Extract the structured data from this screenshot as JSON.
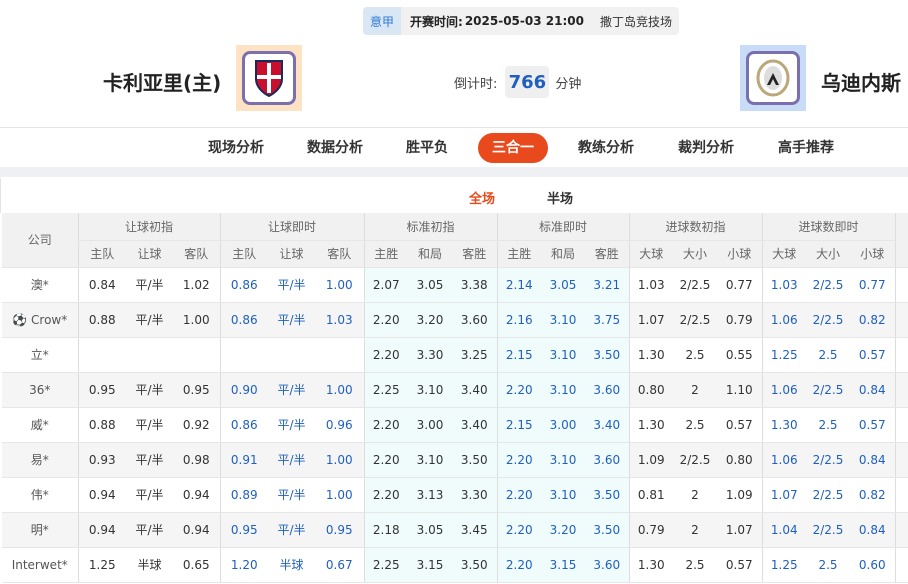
{
  "match": {
    "league": "意甲",
    "time_label": "开赛时间:",
    "time": "2025-05-03 21:00",
    "venue": "撒丁岛竞技场",
    "home": "卡利亚里(主)",
    "away": "乌迪内斯",
    "countdown_label": "倒计时:",
    "countdown": "766",
    "countdown_unit": "分钟"
  },
  "nav": [
    "现场分析",
    "数据分析",
    "胜平负",
    "三合一",
    "教练分析",
    "裁判分析",
    "高手推荐"
  ],
  "nav_active": "三合一",
  "subtabs": [
    "全场",
    "半场"
  ],
  "accent": "#e8491d",
  "table": {
    "company_header": "公司",
    "groups": [
      "让球初指",
      "让球即时",
      "标准初指",
      "标准即时",
      "进球数初指",
      "进球数即时"
    ],
    "subheaders": [
      "主队",
      "让球",
      "客队",
      "主队",
      "让球",
      "客队",
      "主胜",
      "和局",
      "客胜",
      "主胜",
      "和局",
      "客胜",
      "大球",
      "大小",
      "小球",
      "大球",
      "大小",
      "小球"
    ],
    "rows": [
      {
        "company": "澳*",
        "v": [
          "0.84",
          "平/半",
          "1.02",
          "0.86",
          "平/半",
          "1.00",
          "2.07",
          "3.05",
          "3.38",
          "2.14",
          "3.05",
          "3.21",
          "1.03",
          "2/2.5",
          "0.77",
          "1.03",
          "2/2.5",
          "0.77"
        ]
      },
      {
        "company": "Crow*",
        "icon": "soccer-ball",
        "v": [
          "0.88",
          "平/半",
          "1.00",
          "0.86",
          "平/半",
          "1.03",
          "2.20",
          "3.20",
          "3.60",
          "2.16",
          "3.10",
          "3.75",
          "1.07",
          "2/2.5",
          "0.79",
          "1.06",
          "2/2.5",
          "0.82"
        ]
      },
      {
        "company": "立*",
        "v": [
          "",
          "",
          "",
          "",
          "",
          "",
          "2.20",
          "3.30",
          "3.25",
          "2.15",
          "3.10",
          "3.50",
          "1.30",
          "2.5",
          "0.55",
          "1.25",
          "2.5",
          "0.57"
        ]
      },
      {
        "company": "36*",
        "v": [
          "0.95",
          "平/半",
          "0.95",
          "0.90",
          "平/半",
          "1.00",
          "2.25",
          "3.10",
          "3.40",
          "2.20",
          "3.10",
          "3.60",
          "0.80",
          "2",
          "1.10",
          "1.06",
          "2/2.5",
          "0.84"
        ]
      },
      {
        "company": "威*",
        "v": [
          "0.88",
          "平/半",
          "0.92",
          "0.86",
          "平/半",
          "0.96",
          "2.20",
          "3.00",
          "3.40",
          "2.15",
          "3.00",
          "3.40",
          "1.30",
          "2.5",
          "0.57",
          "1.30",
          "2.5",
          "0.57"
        ]
      },
      {
        "company": "易*",
        "v": [
          "0.93",
          "平/半",
          "0.98",
          "0.91",
          "平/半",
          "1.00",
          "2.20",
          "3.10",
          "3.50",
          "2.20",
          "3.10",
          "3.60",
          "1.09",
          "2/2.5",
          "0.80",
          "1.06",
          "2/2.5",
          "0.84"
        ]
      },
      {
        "company": "伟*",
        "v": [
          "0.94",
          "平/半",
          "0.94",
          "0.89",
          "平/半",
          "1.00",
          "2.20",
          "3.13",
          "3.30",
          "2.20",
          "3.10",
          "3.50",
          "0.81",
          "2",
          "1.09",
          "1.07",
          "2/2.5",
          "0.82"
        ]
      },
      {
        "company": "明*",
        "v": [
          "0.94",
          "平/半",
          "0.94",
          "0.95",
          "平/半",
          "0.95",
          "2.18",
          "3.05",
          "3.45",
          "2.20",
          "3.20",
          "3.50",
          "0.79",
          "2",
          "1.07",
          "1.04",
          "2/2.5",
          "0.84"
        ]
      },
      {
        "company": "Interwet*",
        "v": [
          "1.25",
          "半球",
          "0.65",
          "1.20",
          "半球",
          "0.67",
          "2.25",
          "3.15",
          "3.50",
          "2.20",
          "3.15",
          "3.60",
          "1.30",
          "2.5",
          "0.57",
          "1.25",
          "2.5",
          "0.60"
        ]
      }
    ]
  }
}
